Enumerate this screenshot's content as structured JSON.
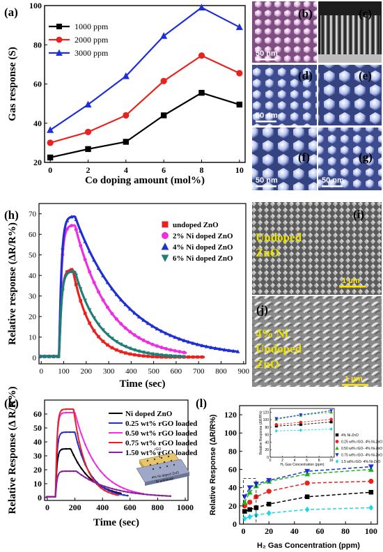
{
  "panels": {
    "a": "(a)",
    "b": "(b)",
    "c": "(c)",
    "d": "(d)",
    "e": "(e)",
    "f": "(f)",
    "g": "(g)",
    "h": "(h)",
    "i": "(i)",
    "j": "(j)",
    "k": "(k)",
    "l": "(l)"
  },
  "sem": {
    "scale_50nm": "50 nm",
    "scale_1um": "1 μm",
    "i_text": [
      "Undoped",
      "ZnO"
    ],
    "j_text": [
      "4% Ni",
      "Undoped",
      "ZnO"
    ],
    "k_inset": {
      "top": "rGO",
      "mid": "4% Ni doped ZnO",
      "bottom": "Si substrate"
    }
  },
  "colors": {
    "black": "#000000",
    "red": "#e8231f",
    "blue": "#1f2fd6",
    "magenta": "#ee2ee0",
    "teal": "#1f7f76",
    "purple": "#8a1fa0",
    "green": "#1bb51b",
    "cyan": "#1fd6e8"
  },
  "chart_data": [
    {
      "id": "a",
      "type": "line",
      "xlabel": "Co doping amount (mol%)",
      "ylabel": "Gas response (S)",
      "xlim": [
        -0.3,
        10.3
      ],
      "ylim": [
        20,
        100
      ],
      "xticks": [
        0,
        2,
        4,
        6,
        8,
        10
      ],
      "yticks": [
        20,
        40,
        60,
        80,
        100
      ],
      "x": [
        0,
        2,
        4,
        6,
        8,
        10
      ],
      "series": [
        {
          "name": "1000 ppm",
          "color": "#000000",
          "marker": "square",
          "values": [
            22.5,
            26.8,
            30.5,
            44,
            55.5,
            49.5
          ]
        },
        {
          "name": "2000 ppm",
          "color": "#e8231f",
          "marker": "circle",
          "values": [
            30,
            35.5,
            44,
            61.5,
            74.5,
            65.5
          ]
        },
        {
          "name": "3000 ppm",
          "color": "#1f2fd6",
          "marker": "triangle",
          "values": [
            36.5,
            49.5,
            64,
            84.5,
            99,
            89
          ]
        }
      ],
      "legend": "top-left"
    },
    {
      "id": "h",
      "type": "line",
      "xlabel": "Time (sec)",
      "ylabel": "Relative response (ΔR/R%)",
      "xlim": [
        -10,
        910
      ],
      "ylim": [
        -3,
        75
      ],
      "xticks": [
        0,
        100,
        200,
        300,
        400,
        500,
        600,
        700,
        800,
        900
      ],
      "yticks": [
        0,
        10,
        20,
        30,
        40,
        50,
        60,
        70
      ],
      "series": [
        {
          "name": "undoped ZnO",
          "color": "#e8231f",
          "marker": "square",
          "on": 80,
          "off": 140,
          "peak": 43,
          "tau": 80,
          "end": 730
        },
        {
          "name": "2% Ni doped ZnO",
          "color": "#ee2ee0",
          "marker": "circle",
          "on": 80,
          "off": 150,
          "peak": 64.5,
          "tau": 150,
          "end": 650
        },
        {
          "name": "4% Ni doped ZnO",
          "color": "#1f2fd6",
          "marker": "triangle",
          "on": 80,
          "off": 150,
          "peak": 68.8,
          "tau": 230,
          "end": 875
        },
        {
          "name": "6% Ni doped ZnO",
          "color": "#1f7f76",
          "marker": "triangle-down",
          "on": 80,
          "off": 150,
          "peak": 42,
          "tau": 110,
          "end": 640
        }
      ],
      "legend": "top-right"
    },
    {
      "id": "k",
      "type": "line",
      "xlabel": "Time (sec)",
      "ylabel": "Relative Response (Δ R/R%)",
      "xlim": [
        -20,
        1020
      ],
      "ylim": [
        -2,
        70
      ],
      "xticks": [
        0,
        200,
        400,
        600,
        800,
        1000
      ],
      "yticks": [
        0,
        10,
        20,
        30,
        40,
        50,
        60
      ],
      "series": [
        {
          "name": "Ni doped ZnO",
          "color": "#000000",
          "peak": 35,
          "on": 60,
          "off": 170,
          "tau": 150,
          "end": 540
        },
        {
          "name": "0.25 wt% rGO loaded",
          "color": "#1f2fd6",
          "peak": 47,
          "on": 60,
          "off": 200,
          "tau": 110,
          "end": 590
        },
        {
          "name": "0.50 wt% rGO loaded",
          "color": "#ee2ee0",
          "peak": 61,
          "on": 60,
          "off": 200,
          "tau": 160,
          "end": 700
        },
        {
          "name": "0.75 wt% rGO loaded",
          "color": "#e8231f",
          "peak": 63.5,
          "on": 60,
          "off": 190,
          "tau": 90,
          "end": 520
        },
        {
          "name": "1.50 wt% rGO loaded",
          "color": "#8a1fa0",
          "peak": 19,
          "on": 60,
          "off": 210,
          "tau": 240,
          "end": 900
        }
      ],
      "legend": "top-right"
    },
    {
      "id": "l",
      "type": "scatter",
      "xlabel": "H₂ Gas Concentration (ppm)",
      "ylabel": "Relative Response (ΔR/R%)",
      "xlim": [
        -3,
        105
      ],
      "ylim": [
        0,
        130
      ],
      "xticks": [
        0,
        20,
        40,
        60,
        80,
        100
      ],
      "yticks": [
        0,
        20,
        40,
        60,
        80,
        100,
        120
      ],
      "x": [
        1,
        5,
        10,
        20,
        50,
        100
      ],
      "series": [
        {
          "name": "4% Ni-ZnO",
          "color": "#000000",
          "marker": "square",
          "values": [
            14,
            16,
            18,
            22,
            30,
            35
          ]
        },
        {
          "name": "0.25 wt% rGO- 4% Ni-ZnO",
          "color": "#e8231f",
          "marker": "circle",
          "values": [
            20,
            24,
            30,
            36,
            45,
            47
          ]
        },
        {
          "name": "0.50 wt% rGO- 4% Ni-ZnO",
          "color": "#1bb51b",
          "marker": "triangle",
          "values": [
            24,
            35,
            42,
            47,
            55,
            60
          ]
        },
        {
          "name": "0.75 wt% rGO- 4% Ni-ZnO",
          "color": "#1f2fd6",
          "marker": "triangle-down",
          "values": [
            30,
            40,
            44,
            48,
            58,
            63
          ]
        },
        {
          "name": "1.5 wt% rGO- 4% Ni-ZnO",
          "color": "#1fd6e8",
          "marker": "diamond",
          "values": [
            6,
            8,
            10,
            12,
            16,
            18
          ]
        }
      ],
      "legend": "right",
      "inset": {
        "xlabel": "H₂ Gas Concentration (ppm)",
        "ylabel": "Relative Response (ΔR/R%)",
        "xlim": [
          0,
          10.5
        ],
        "ylim": [
          0,
          130
        ],
        "xticks": [
          0,
          2,
          4,
          6,
          8,
          10
        ],
        "yticks": [
          0,
          20,
          40,
          60,
          80,
          100,
          120
        ],
        "x": [
          1,
          5,
          10
        ],
        "series": [
          {
            "color": "#000000",
            "marker": "square",
            "values": [
              83,
              87,
              94
            ]
          },
          {
            "color": "#e8231f",
            "marker": "circle",
            "values": [
              87,
              93,
              101
            ]
          },
          {
            "color": "#1bb51b",
            "marker": "triangle",
            "values": [
              101,
              112,
              120
            ]
          },
          {
            "color": "#1f2fd6",
            "marker": "triangle-down",
            "values": [
              103,
              113,
              124
            ]
          },
          {
            "color": "#1fd6e8",
            "marker": "diamond",
            "values": [
              70,
              72,
              75
            ]
          }
        ]
      }
    }
  ]
}
